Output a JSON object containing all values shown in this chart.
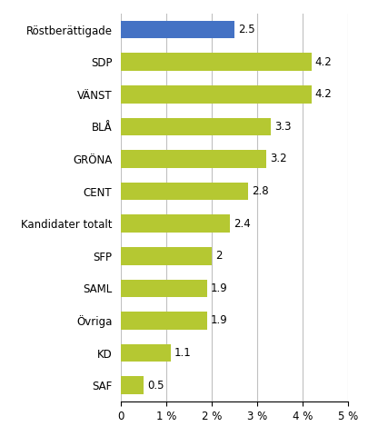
{
  "categories": [
    "Röstberättigade",
    "SDP",
    "VÄNST",
    "BLÅ",
    "GRÖNA",
    "CENT",
    "Kandidater totalt",
    "SFP",
    "SAML",
    "Övriga",
    "KD",
    "SAF"
  ],
  "values": [
    2.5,
    4.2,
    4.2,
    3.3,
    3.2,
    2.8,
    2.4,
    2.0,
    1.9,
    1.9,
    1.1,
    0.5
  ],
  "bar_colors": [
    "#4472c4",
    "#b5c832",
    "#b5c832",
    "#b5c832",
    "#b5c832",
    "#b5c832",
    "#b5c832",
    "#b5c832",
    "#b5c832",
    "#b5c832",
    "#b5c832",
    "#b5c832"
  ],
  "xlim": [
    0,
    5
  ],
  "xticks": [
    0,
    1,
    2,
    3,
    4,
    5
  ],
  "xtick_labels": [
    "0",
    "1 %",
    "2 %",
    "3 %",
    "4 %",
    "5 %"
  ],
  "value_labels": [
    "2.5",
    "4.2",
    "4.2",
    "3.3",
    "3.2",
    "2.8",
    "2.4",
    "2",
    "1.9",
    "1.9",
    "1.1",
    "0.5"
  ],
  "bar_height": 0.55,
  "grid_color": "#c0c0c0",
  "background_color": "#ffffff",
  "text_color": "#000000",
  "label_fontsize": 8.5,
  "value_fontsize": 8.5
}
